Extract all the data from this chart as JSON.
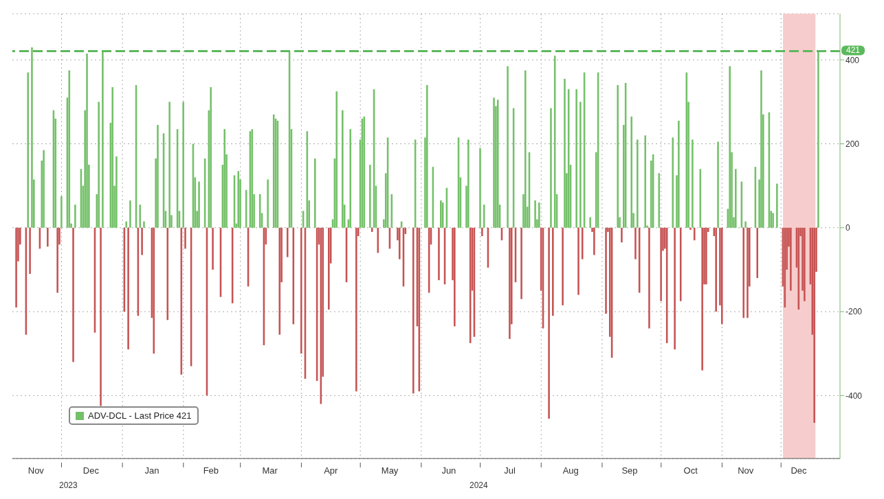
{
  "chart_data": {
    "type": "bar",
    "x": [
      "2023-11-08",
      "2023-11-09",
      "2023-11-10",
      "2023-11-13",
      "2023-11-14",
      "2023-11-15",
      "2023-11-16",
      "2023-11-17",
      "2023-11-20",
      "2023-11-21",
      "2023-11-22",
      "2023-11-24",
      "2023-11-27",
      "2023-11-28",
      "2023-11-29",
      "2023-11-30",
      "2023-12-01",
      "2023-12-04",
      "2023-12-05",
      "2023-12-06",
      "2023-12-07",
      "2023-12-08",
      "2023-12-11",
      "2023-12-12",
      "2023-12-13",
      "2023-12-14",
      "2023-12-15",
      "2023-12-18",
      "2023-12-19",
      "2023-12-20",
      "2023-12-21",
      "2023-12-22",
      "2023-12-26",
      "2023-12-27",
      "2023-12-28",
      "2023-12-29",
      "2024-01-02",
      "2024-01-03",
      "2024-01-04",
      "2024-01-05",
      "2024-01-08",
      "2024-01-09",
      "2024-01-10",
      "2024-01-11",
      "2024-01-12",
      "2024-01-16",
      "2024-01-17",
      "2024-01-18",
      "2024-01-19",
      "2024-01-22",
      "2024-01-23",
      "2024-01-24",
      "2024-01-25",
      "2024-01-26",
      "2024-01-29",
      "2024-01-30",
      "2024-01-31",
      "2024-02-01",
      "2024-02-02",
      "2024-02-05",
      "2024-02-06",
      "2024-02-07",
      "2024-02-08",
      "2024-02-09",
      "2024-02-12",
      "2024-02-13",
      "2024-02-14",
      "2024-02-15",
      "2024-02-16",
      "2024-02-20",
      "2024-02-21",
      "2024-02-22",
      "2024-02-23",
      "2024-02-26",
      "2024-02-27",
      "2024-02-28",
      "2024-02-29",
      "2024-03-01",
      "2024-03-04",
      "2024-03-05",
      "2024-03-06",
      "2024-03-07",
      "2024-03-08",
      "2024-03-11",
      "2024-03-12",
      "2024-03-13",
      "2024-03-14",
      "2024-03-15",
      "2024-03-18",
      "2024-03-19",
      "2024-03-20",
      "2024-03-21",
      "2024-03-22",
      "2024-03-25",
      "2024-03-26",
      "2024-03-27",
      "2024-03-28",
      "2024-04-01",
      "2024-04-02",
      "2024-04-03",
      "2024-04-04",
      "2024-04-05",
      "2024-04-08",
      "2024-04-09",
      "2024-04-10",
      "2024-04-11",
      "2024-04-12",
      "2024-04-15",
      "2024-04-16",
      "2024-04-17",
      "2024-04-18",
      "2024-04-19",
      "2024-04-22",
      "2024-04-23",
      "2024-04-24",
      "2024-04-25",
      "2024-04-26",
      "2024-04-29",
      "2024-04-30",
      "2024-05-01",
      "2024-05-02",
      "2024-05-03",
      "2024-05-06",
      "2024-05-07",
      "2024-05-08",
      "2024-05-09",
      "2024-05-10",
      "2024-05-13",
      "2024-05-14",
      "2024-05-15",
      "2024-05-16",
      "2024-05-17",
      "2024-05-20",
      "2024-05-21",
      "2024-05-22",
      "2024-05-23",
      "2024-05-24",
      "2024-05-28",
      "2024-05-29",
      "2024-05-30",
      "2024-05-31",
      "2024-06-03",
      "2024-06-04",
      "2024-06-05",
      "2024-06-06",
      "2024-06-07",
      "2024-06-10",
      "2024-06-11",
      "2024-06-12",
      "2024-06-13",
      "2024-06-14",
      "2024-06-17",
      "2024-06-18",
      "2024-06-20",
      "2024-06-21",
      "2024-06-24",
      "2024-06-25",
      "2024-06-26",
      "2024-06-27",
      "2024-06-28",
      "2024-07-01",
      "2024-07-02",
      "2024-07-03",
      "2024-07-05",
      "2024-07-08",
      "2024-07-09",
      "2024-07-10",
      "2024-07-11",
      "2024-07-12",
      "2024-07-15",
      "2024-07-16",
      "2024-07-17",
      "2024-07-18",
      "2024-07-19",
      "2024-07-22",
      "2024-07-23",
      "2024-07-24",
      "2024-07-25",
      "2024-07-26",
      "2024-07-29",
      "2024-07-30",
      "2024-07-31",
      "2024-08-01",
      "2024-08-02",
      "2024-08-05",
      "2024-08-06",
      "2024-08-07",
      "2024-08-08",
      "2024-08-09",
      "2024-08-12",
      "2024-08-13",
      "2024-08-14",
      "2024-08-15",
      "2024-08-16",
      "2024-08-19",
      "2024-08-20",
      "2024-08-21",
      "2024-08-22",
      "2024-08-23",
      "2024-08-26",
      "2024-08-27",
      "2024-08-28",
      "2024-08-29",
      "2024-08-30",
      "2024-09-03",
      "2024-09-04",
      "2024-09-05",
      "2024-09-06",
      "2024-09-09",
      "2024-09-10",
      "2024-09-11",
      "2024-09-12",
      "2024-09-13",
      "2024-09-16",
      "2024-09-17",
      "2024-09-18",
      "2024-09-19",
      "2024-09-20",
      "2024-09-23",
      "2024-09-24",
      "2024-09-25",
      "2024-09-26",
      "2024-09-27",
      "2024-09-30",
      "2024-10-01",
      "2024-10-02",
      "2024-10-03",
      "2024-10-04",
      "2024-10-07",
      "2024-10-08",
      "2024-10-09",
      "2024-10-10",
      "2024-10-11",
      "2024-10-14",
      "2024-10-15",
      "2024-10-16",
      "2024-10-17",
      "2024-10-18",
      "2024-10-21",
      "2024-10-22",
      "2024-10-23",
      "2024-10-24",
      "2024-10-25",
      "2024-10-28",
      "2024-10-29",
      "2024-10-30",
      "2024-10-31",
      "2024-11-01",
      "2024-11-04",
      "2024-11-05",
      "2024-11-06",
      "2024-11-07",
      "2024-11-08",
      "2024-11-11",
      "2024-11-12",
      "2024-11-13",
      "2024-11-14",
      "2024-11-15",
      "2024-11-18",
      "2024-11-19",
      "2024-11-20",
      "2024-11-21",
      "2024-11-22",
      "2024-11-25",
      "2024-11-26",
      "2024-11-27",
      "2024-11-29",
      "2024-12-02",
      "2024-12-03",
      "2024-12-04",
      "2024-12-05",
      "2024-12-06",
      "2024-12-09",
      "2024-12-10",
      "2024-12-11",
      "2024-12-12",
      "2024-12-13",
      "2024-12-16",
      "2024-12-17",
      "2024-12-18",
      "2024-12-19",
      "2024-12-20"
    ],
    "series": [
      {
        "name": "ADV-DCL - Last Price 421",
        "color": "#74c069",
        "values": [
          -190,
          -80,
          -40,
          -255,
          370,
          -110,
          430,
          115,
          -50,
          160,
          185,
          -45,
          280,
          260,
          -155,
          -40,
          75,
          310,
          375,
          10,
          -320,
          55,
          140,
          100,
          280,
          415,
          150,
          -250,
          80,
          300,
          -425,
          420,
          250,
          335,
          100,
          170,
          -200,
          15,
          -290,
          65,
          340,
          -210,
          55,
          -65,
          15,
          -215,
          -300,
          165,
          245,
          225,
          40,
          -220,
          300,
          30,
          235,
          40,
          -350,
          300,
          -50,
          -330,
          200,
          120,
          40,
          110,
          165,
          -400,
          280,
          335,
          -100,
          -165,
          150,
          235,
          175,
          -180,
          125,
          10,
          135,
          115,
          90,
          -140,
          230,
          235,
          80,
          80,
          35,
          -280,
          -40,
          115,
          270,
          260,
          255,
          -255,
          -130,
          -70,
          420,
          235,
          -230,
          -300,
          40,
          -360,
          230,
          65,
          165,
          -365,
          -40,
          -420,
          -355,
          -195,
          -85,
          20,
          165,
          325,
          280,
          55,
          -130,
          20,
          235,
          -390,
          -20,
          210,
          260,
          265,
          150,
          -10,
          330,
          100,
          -60,
          20,
          130,
          215,
          -50,
          80,
          -30,
          -75,
          15,
          -140,
          -15,
          -395,
          210,
          -235,
          -390,
          215,
          340,
          -155,
          -40,
          145,
          -125,
          65,
          60,
          -135,
          95,
          -125,
          -235,
          215,
          120,
          100,
          210,
          -275,
          -150,
          -260,
          190,
          -20,
          55,
          -95,
          310,
          290,
          305,
          55,
          -30,
          385,
          -265,
          -230,
          285,
          -130,
          -170,
          80,
          375,
          50,
          180,
          65,
          20,
          60,
          -150,
          -240,
          -455,
          285,
          -210,
          410,
          80,
          -185,
          355,
          130,
          330,
          150,
          330,
          -160,
          300,
          -75,
          370,
          25,
          -10,
          -65,
          180,
          370,
          -205,
          -10,
          -260,
          -310,
          340,
          25,
          -35,
          245,
          345,
          265,
          35,
          -75,
          210,
          -155,
          220,
          5,
          -240,
          160,
          175,
          130,
          -175,
          -55,
          -50,
          -275,
          215,
          -290,
          125,
          255,
          -175,
          370,
          300,
          -5,
          210,
          -30,
          140,
          -340,
          -135,
          -135,
          -10,
          -20,
          -200,
          205,
          -185,
          -230,
          45,
          385,
          180,
          25,
          140,
          110,
          -215,
          15,
          -215,
          -140,
          145,
          -120,
          115,
          375,
          270,
          275,
          40,
          35,
          105,
          -140,
          -190,
          -100,
          -45,
          -150,
          -95,
          -195,
          -20,
          -150,
          -175,
          -135,
          -255,
          -465,
          -105,
          421
        ],
        "colors": [
          "#c65353",
          "#c65353",
          "#c65353",
          "#c65353",
          "#74c069",
          "#c65353",
          "#74c069",
          "#74c069",
          "#c65353",
          "#74c069",
          "#74c069",
          "#c65353",
          "#74c069",
          "#74c069",
          "#c65353",
          "#c65353",
          "#74c069",
          "#74c069",
          "#74c069",
          "#74c069",
          "#c65353",
          "#74c069",
          "#74c069",
          "#74c069",
          "#74c069",
          "#74c069",
          "#74c069",
          "#c65353",
          "#74c069",
          "#74c069",
          "#c65353",
          "#74c069",
          "#74c069",
          "#74c069",
          "#74c069",
          "#74c069",
          "#c65353",
          "#74c069",
          "#c65353",
          "#74c069",
          "#74c069",
          "#c65353",
          "#74c069",
          "#c65353",
          "#74c069",
          "#c65353",
          "#c65353",
          "#74c069",
          "#74c069",
          "#74c069",
          "#74c069",
          "#c65353",
          "#74c069",
          "#74c069",
          "#74c069",
          "#74c069",
          "#c65353",
          "#74c069",
          "#c65353",
          "#c65353",
          "#74c069",
          "#74c069",
          "#74c069",
          "#74c069",
          "#74c069",
          "#c65353",
          "#74c069",
          "#74c069",
          "#c65353",
          "#c65353",
          "#74c069",
          "#74c069",
          "#74c069",
          "#c65353",
          "#74c069",
          "#74c069",
          "#74c069",
          "#74c069",
          "#74c069",
          "#c65353",
          "#74c069",
          "#74c069",
          "#74c069",
          "#74c069",
          "#74c069",
          "#c65353",
          "#c65353",
          "#74c069",
          "#74c069",
          "#74c069",
          "#74c069",
          "#c65353",
          "#c65353",
          "#c65353",
          "#74c069",
          "#74c069",
          "#c65353",
          "#c65353",
          "#74c069",
          "#c65353",
          "#74c069",
          "#74c069",
          "#74c069",
          "#c65353",
          "#c65353",
          "#c65353",
          "#c65353",
          "#c65353",
          "#c65353",
          "#74c069",
          "#74c069",
          "#74c069",
          "#74c069",
          "#74c069",
          "#c65353",
          "#74c069",
          "#74c069",
          "#c65353",
          "#c65353",
          "#74c069",
          "#74c069",
          "#74c069",
          "#74c069",
          "#c65353",
          "#74c069",
          "#74c069",
          "#c65353",
          "#74c069",
          "#74c069",
          "#74c069",
          "#c65353",
          "#74c069",
          "#c65353",
          "#c65353",
          "#74c069",
          "#c65353",
          "#c65353",
          "#c65353",
          "#74c069",
          "#c65353",
          "#c65353",
          "#74c069",
          "#74c069",
          "#c65353",
          "#c65353",
          "#74c069",
          "#c65353",
          "#74c069",
          "#74c069",
          "#c65353",
          "#74c069",
          "#c65353",
          "#c65353",
          "#74c069",
          "#74c069",
          "#74c069",
          "#74c069",
          "#c65353",
          "#c65353",
          "#c65353",
          "#74c069",
          "#c65353",
          "#74c069",
          "#c65353",
          "#74c069",
          "#74c069",
          "#74c069",
          "#74c069",
          "#c65353",
          "#74c069",
          "#c65353",
          "#c65353",
          "#74c069",
          "#c65353",
          "#c65353",
          "#74c069",
          "#74c069",
          "#74c069",
          "#74c069",
          "#74c069",
          "#74c069",
          "#74c069",
          "#c65353",
          "#c65353",
          "#c65353",
          "#74c069",
          "#c65353",
          "#74c069",
          "#74c069",
          "#c65353",
          "#74c069",
          "#74c069",
          "#74c069",
          "#74c069",
          "#74c069",
          "#c65353",
          "#74c069",
          "#c65353",
          "#74c069",
          "#74c069",
          "#c65353",
          "#c65353",
          "#74c069",
          "#74c069",
          "#c65353",
          "#c65353",
          "#c65353",
          "#c65353",
          "#74c069",
          "#74c069",
          "#c65353",
          "#74c069",
          "#74c069",
          "#74c069",
          "#74c069",
          "#c65353",
          "#74c069",
          "#c65353",
          "#74c069",
          "#74c069",
          "#c65353",
          "#74c069",
          "#74c069",
          "#74c069",
          "#c65353",
          "#c65353",
          "#c65353",
          "#c65353",
          "#74c069",
          "#c65353",
          "#74c069",
          "#74c069",
          "#c65353",
          "#74c069",
          "#74c069",
          "#c65353",
          "#74c069",
          "#c65353",
          "#74c069",
          "#c65353",
          "#c65353",
          "#c65353",
          "#c65353",
          "#c65353",
          "#c65353",
          "#74c069",
          "#c65353",
          "#c65353",
          "#74c069",
          "#74c069",
          "#74c069",
          "#74c069",
          "#74c069",
          "#74c069",
          "#c65353",
          "#74c069",
          "#c65353",
          "#c65353",
          "#74c069",
          "#c65353",
          "#74c069",
          "#74c069",
          "#74c069",
          "#74c069",
          "#74c069",
          "#74c069",
          "#74c069",
          "#c65353",
          "#c65353",
          "#c65353",
          "#c65353",
          "#c65353",
          "#c65353",
          "#c65353",
          "#c65353",
          "#c65353",
          "#c65353",
          "#c65353",
          "#c65353",
          "#c65353",
          "#c65353",
          "#74c069"
        ]
      }
    ],
    "xlim": [
      "2023-11-06",
      "2024-12-31"
    ],
    "xticks": [
      {
        "value": "2023-11-18",
        "label": "Nov"
      },
      {
        "value": "2023-12-01",
        "label": null
      },
      {
        "value": "2023-12-16",
        "label": "Dec"
      },
      {
        "value": "2024-01-01",
        "label": null
      },
      {
        "value": "2024-01-16",
        "label": "Jan"
      },
      {
        "value": "2024-02-01",
        "label": null
      },
      {
        "value": "2024-02-15",
        "label": "Feb"
      },
      {
        "value": "2024-03-01",
        "label": null
      },
      {
        "value": "2024-03-16",
        "label": "Mar"
      },
      {
        "value": "2024-04-01",
        "label": null
      },
      {
        "value": "2024-04-16",
        "label": "Apr"
      },
      {
        "value": "2024-05-01",
        "label": null
      },
      {
        "value": "2024-05-16",
        "label": "May"
      },
      {
        "value": "2024-06-01",
        "label": null
      },
      {
        "value": "2024-06-15",
        "label": "Jun"
      },
      {
        "value": "2024-07-01",
        "label": null
      },
      {
        "value": "2024-07-16",
        "label": "Jul"
      },
      {
        "value": "2024-08-01",
        "label": null
      },
      {
        "value": "2024-08-16",
        "label": "Aug"
      },
      {
        "value": "2024-09-01",
        "label": null
      },
      {
        "value": "2024-09-15",
        "label": "Sep"
      },
      {
        "value": "2024-10-01",
        "label": null
      },
      {
        "value": "2024-10-16",
        "label": "Oct"
      },
      {
        "value": "2024-11-01",
        "label": null
      },
      {
        "value": "2024-11-13",
        "label": "Nov"
      },
      {
        "value": "2024-12-01",
        "label": null
      },
      {
        "value": "2024-12-10",
        "label": "Dec"
      }
    ],
    "ylim": [
      -550,
      510
    ],
    "yticks": [
      -400,
      -200,
      0,
      200,
      400
    ],
    "grid": true,
    "legend": "bottom left",
    "ref_lines": [
      {
        "axis": "y",
        "value": 421,
        "label": "421",
        "color": "#5cb85c",
        "line_style": "dashed"
      }
    ],
    "bands": [
      {
        "axis": "x",
        "from": "2024-12-02",
        "to": "2024-12-18",
        "color": "#f7cccc"
      }
    ],
    "annotations": [
      "2023",
      "2024"
    ]
  }
}
